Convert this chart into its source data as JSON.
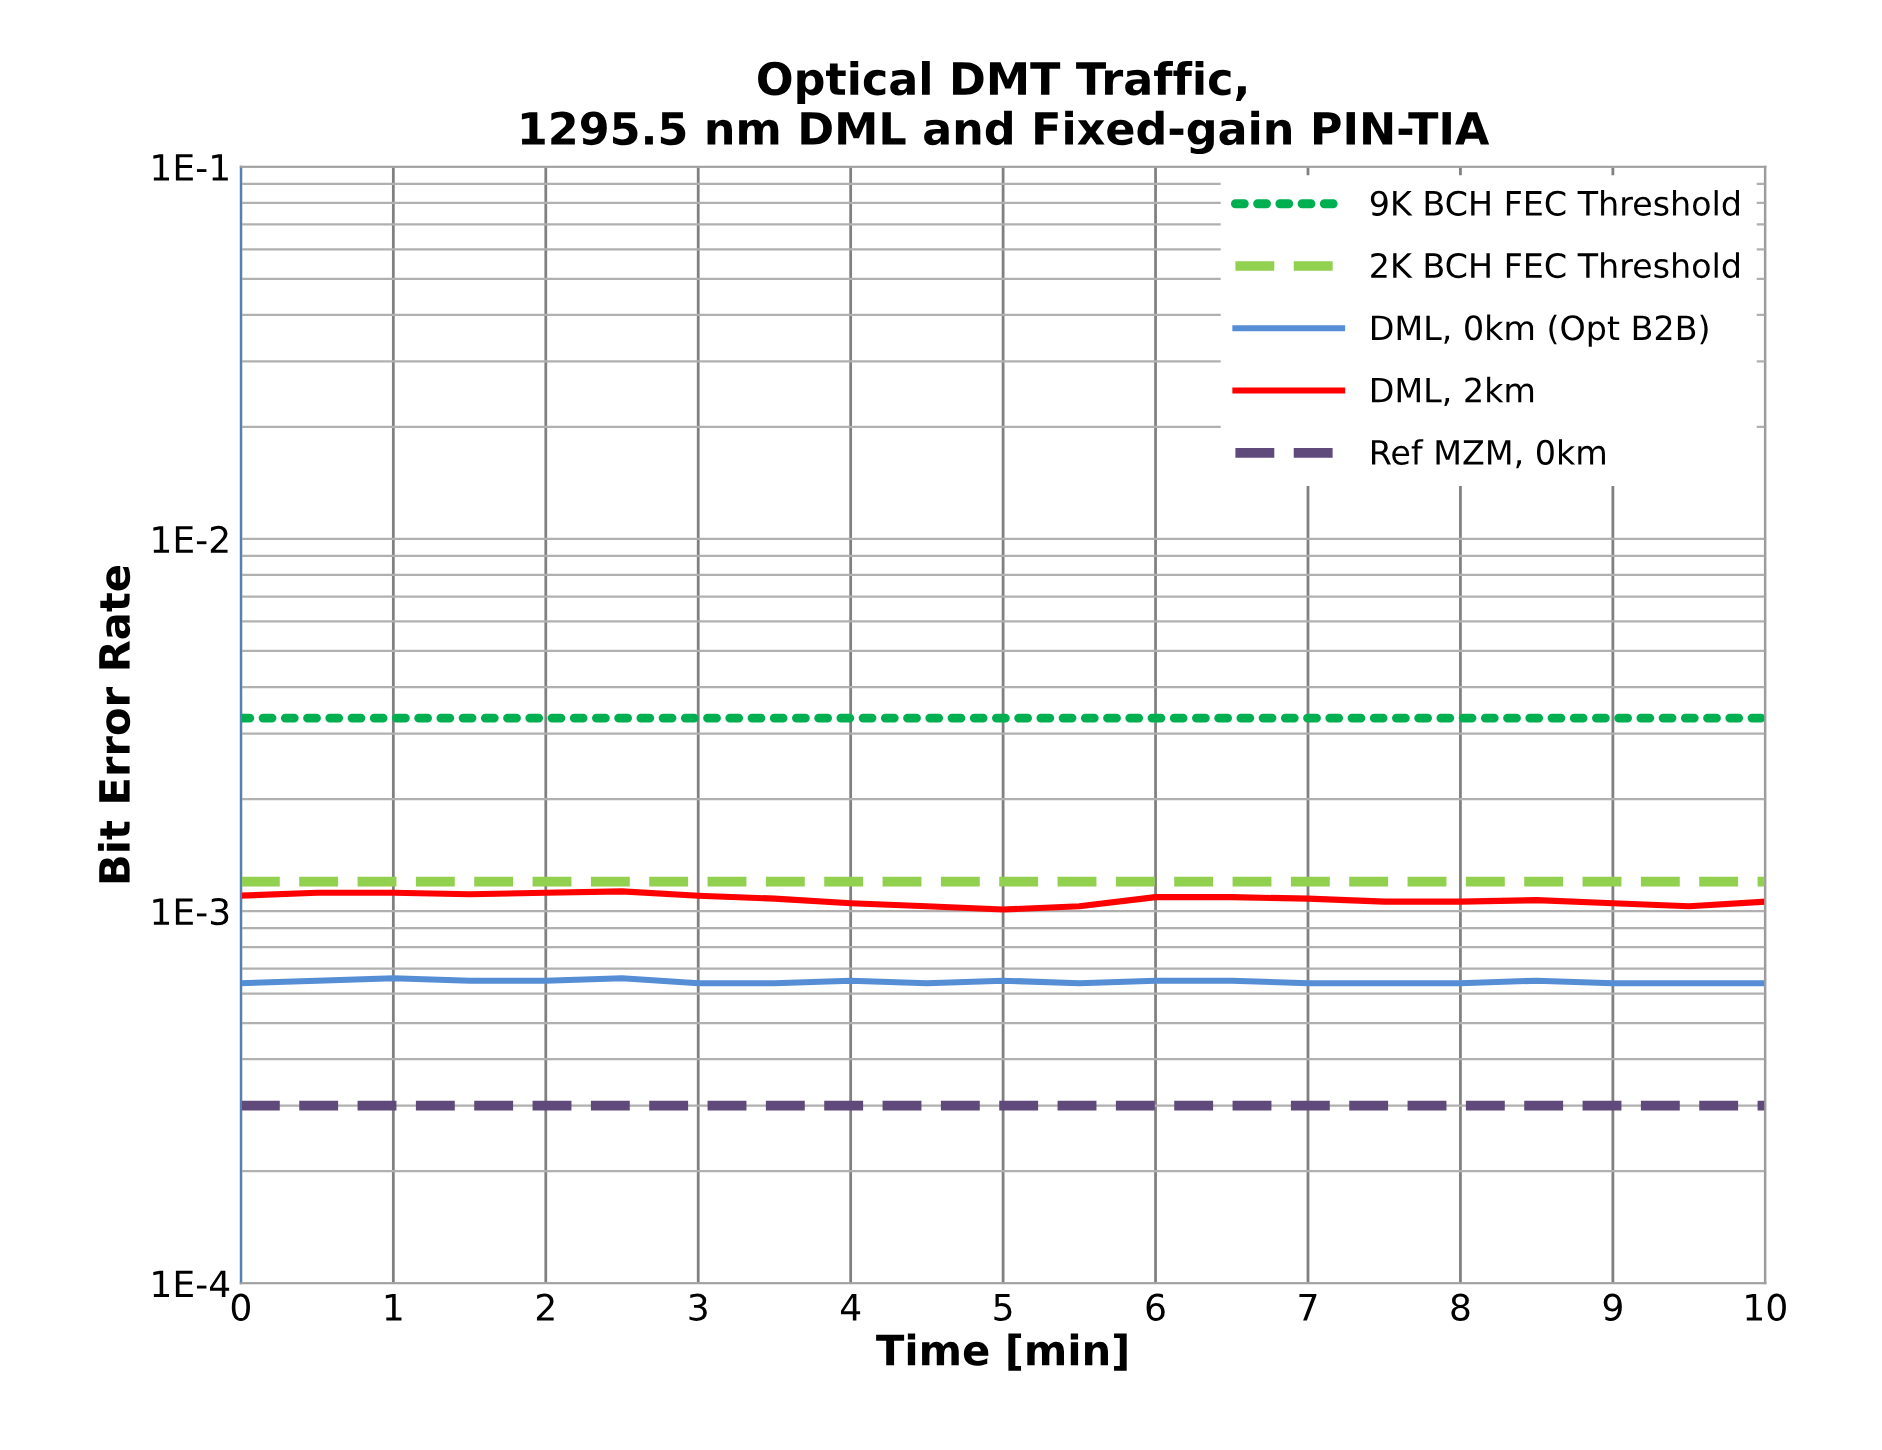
{
  "chart_data": {
    "type": "line",
    "title": "Optical DMT Traffic,\n1295.5 nm DML and Fixed-gain PIN-TIA",
    "xlabel": "Time [min]",
    "ylabel": "Bit Error Rate",
    "log": "y",
    "grid": true,
    "legend": "top right",
    "xlim": [
      0,
      10
    ],
    "xticks": [
      0,
      1,
      2,
      3,
      4,
      5,
      6,
      7,
      8,
      9,
      10
    ],
    "ylim": [
      0.0001,
      0.1
    ],
    "yticks": [
      {
        "value": 0.0001,
        "label": "1E-4"
      },
      {
        "value": 0.0002,
        "label": null
      },
      {
        "value": 0.0003,
        "label": null
      },
      {
        "value": 0.0004,
        "label": null
      },
      {
        "value": 0.0005,
        "label": null
      },
      {
        "value": 0.0006,
        "label": null
      },
      {
        "value": 0.0007,
        "label": null
      },
      {
        "value": 0.0008,
        "label": null
      },
      {
        "value": 0.0009,
        "label": null
      },
      {
        "value": 0.001,
        "label": "1E-3"
      },
      {
        "value": 0.002,
        "label": null
      },
      {
        "value": 0.003,
        "label": null
      },
      {
        "value": 0.004,
        "label": null
      },
      {
        "value": 0.005,
        "label": null
      },
      {
        "value": 0.006,
        "label": null
      },
      {
        "value": 0.007,
        "label": null
      },
      {
        "value": 0.008,
        "label": null
      },
      {
        "value": 0.009,
        "label": null
      },
      {
        "value": 0.01,
        "label": "1E-2"
      },
      {
        "value": 0.02,
        "label": null
      },
      {
        "value": 0.03,
        "label": null
      },
      {
        "value": 0.04,
        "label": null
      },
      {
        "value": 0.05,
        "label": null
      },
      {
        "value": 0.06,
        "label": null
      },
      {
        "value": 0.07,
        "label": null
      },
      {
        "value": 0.08,
        "label": null
      },
      {
        "value": 0.09,
        "label": null
      },
      {
        "value": 0.1,
        "label": "1E-1"
      }
    ],
    "series": [
      {
        "name": "9K BCH FEC Threshold",
        "color": "#00b050",
        "line_style": "dotted",
        "x": [
          0,
          10
        ],
        "values": [
          0.0033,
          0.0033
        ]
      },
      {
        "name": "2K BCH FEC Threshold",
        "color": "#92d050",
        "line_style": "dashed",
        "x": [
          0,
          10
        ],
        "values": [
          0.0012,
          0.0012
        ]
      },
      {
        "name": "DML, 0km (Opt B2B)",
        "color": "#558ed5",
        "line_style": "solid",
        "x": [
          0,
          0.5,
          1,
          1.5,
          2,
          2.5,
          3,
          3.5,
          4,
          4.5,
          5,
          5.5,
          6,
          6.5,
          7,
          7.5,
          8,
          8.5,
          9,
          9.5,
          10
        ],
        "values": [
          0.00064,
          0.00065,
          0.00066,
          0.00065,
          0.00065,
          0.00066,
          0.00064,
          0.00064,
          0.00065,
          0.00064,
          0.00065,
          0.00064,
          0.00065,
          0.00065,
          0.00064,
          0.00064,
          0.00064,
          0.00065,
          0.00064,
          0.00064,
          0.00064
        ]
      },
      {
        "name": "DML, 2km",
        "color": "#ff0000",
        "line_style": "solid",
        "x": [
          0,
          0.5,
          1,
          1.5,
          2,
          2.5,
          3,
          3.5,
          4,
          4.5,
          5,
          5.5,
          6,
          6.5,
          7,
          7.5,
          8,
          8.5,
          9,
          9.5,
          10
        ],
        "values": [
          0.0011,
          0.00112,
          0.00112,
          0.00111,
          0.00112,
          0.00113,
          0.0011,
          0.00108,
          0.00105,
          0.00103,
          0.00101,
          0.00103,
          0.00109,
          0.00109,
          0.00108,
          0.00106,
          0.00106,
          0.00107,
          0.00105,
          0.00103,
          0.00106
        ]
      },
      {
        "name": "Ref MZM, 0km",
        "color": "#604a7b",
        "line_style": "dashed",
        "x": [
          0,
          10
        ],
        "values": [
          0.0003,
          0.0003
        ]
      }
    ]
  }
}
